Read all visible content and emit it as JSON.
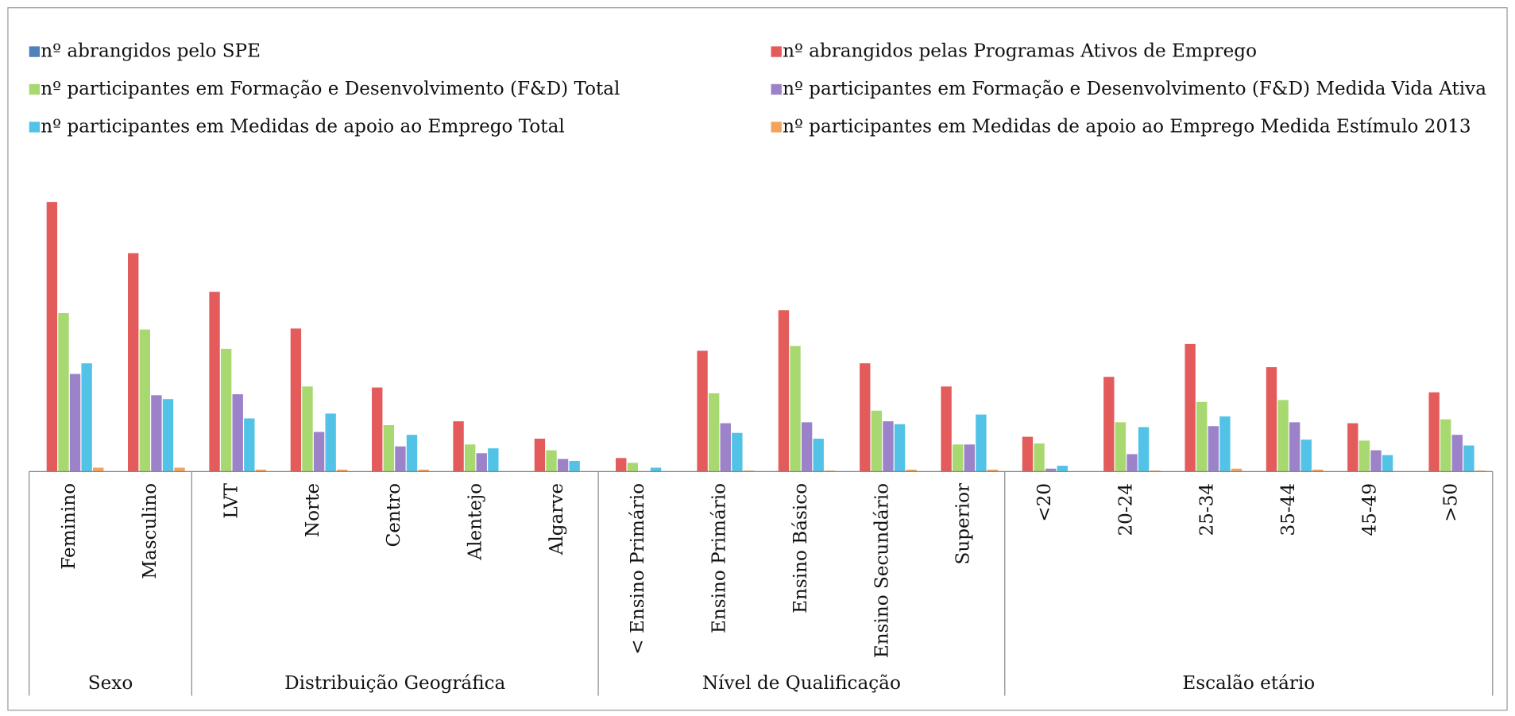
{
  "chart_data": {
    "type": "bar",
    "groups": [
      {
        "label": "Sexo",
        "categories": [
          "Feminino",
          "Masculino"
        ]
      },
      {
        "label": "Distribuição Geográfica",
        "categories": [
          "LVT",
          "Norte",
          "Centro",
          "Alentejo",
          "Algarve"
        ]
      },
      {
        "label": "Nível de Qualificação",
        "categories": [
          "< Ensino Primário",
          "Ensino Primário",
          "Ensino Básico",
          "Ensino Secundário",
          "Superior"
        ]
      },
      {
        "label": "Escalão etário",
        "categories": [
          "<20",
          "20-24",
          "25-34",
          "35-44",
          "45-49",
          ">50"
        ]
      }
    ],
    "series": [
      {
        "name": "nº abrangidos pelo SPE",
        "color": "#4f81bd",
        "values": [
          0,
          0,
          0,
          0,
          0,
          0,
          0,
          0,
          0,
          0,
          0,
          0,
          0,
          0,
          0,
          0,
          0,
          0
        ]
      },
      {
        "name": "nº abrangidos pelas Programas Ativos de Emprego",
        "color": "#e35b5b",
        "values": [
          279,
          226,
          186,
          148,
          87,
          52,
          34,
          14,
          125,
          167,
          112,
          88,
          36,
          98,
          132,
          108,
          50,
          82
        ]
      },
      {
        "name": "nº participantes em Formação e Desenvolvimento (F&D) Total",
        "color": "#a8d870",
        "values": [
          164,
          147,
          127,
          88,
          48,
          28,
          22,
          9,
          81,
          130,
          63,
          28,
          29,
          51,
          72,
          74,
          32,
          54
        ]
      },
      {
        "name": "nº participantes em Formação e Desenvolvimento (F&D) Medida Vida Ativa",
        "color": "#9c83c9",
        "values": [
          101,
          79,
          80,
          41,
          26,
          19,
          13,
          0,
          50,
          51,
          52,
          28,
          3,
          18,
          47,
          51,
          22,
          38
        ]
      },
      {
        "name": "nº participantes em Medidas de apoio ao Emprego Total",
        "color": "#52c3e6",
        "values": [
          112,
          75,
          55,
          60,
          38,
          24,
          11,
          4,
          40,
          34,
          49,
          59,
          6,
          46,
          57,
          33,
          17,
          27
        ]
      },
      {
        "name": "nº participantes em Medidas de apoio ao Emprego Medida Estímulo 2013",
        "color": "#f4a35c",
        "values": [
          4,
          4,
          2,
          2,
          2,
          0,
          0,
          0,
          1,
          1,
          2,
          2,
          0,
          1,
          3,
          2,
          0,
          1
        ]
      }
    ],
    "ylim": [
      0,
      300
    ]
  }
}
